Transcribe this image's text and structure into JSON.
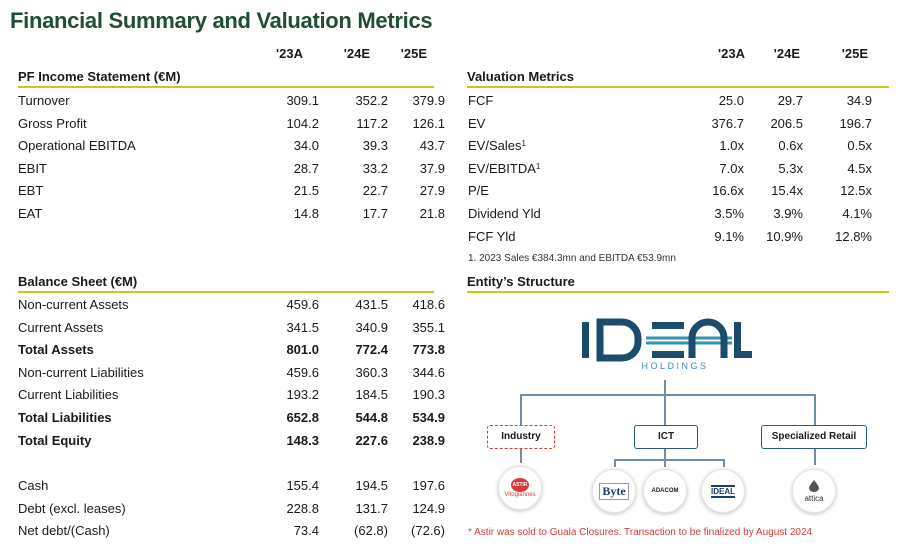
{
  "title": "Financial Summary and Valuation Metrics",
  "years": [
    "'23A",
    "'24E",
    "'25E"
  ],
  "income": {
    "header": "PF Income Statement (€M)",
    "rows": [
      {
        "label": "Turnover",
        "values": [
          "309.1",
          "352.2",
          "379.9"
        ]
      },
      {
        "label": "Gross Profit",
        "values": [
          "104.2",
          "117.2",
          "126.1"
        ]
      },
      {
        "label": "Operational EBITDA",
        "values": [
          "34.0",
          "39.3",
          "43.7"
        ]
      },
      {
        "label": "EBIT",
        "values": [
          "28.7",
          "33.2",
          "37.9"
        ]
      },
      {
        "label": "EBT",
        "values": [
          "21.5",
          "22.7",
          "27.9"
        ]
      },
      {
        "label": "EAT",
        "values": [
          "14.8",
          "17.7",
          "21.8"
        ]
      }
    ]
  },
  "valuation": {
    "header": "Valuation Metrics",
    "rows": [
      {
        "label": "FCF",
        "values": [
          "25.0",
          "29.7",
          "34.9"
        ]
      },
      {
        "label": "EV",
        "values": [
          "376.7",
          "206.5",
          "196.7"
        ]
      },
      {
        "label": "EV/Sales",
        "sup": "1",
        "values": [
          "1.0x",
          "0.6x",
          "0.5x"
        ]
      },
      {
        "label": "EV/EBITDA",
        "sup": "1",
        "values": [
          "7.0x",
          "5.3x",
          "4.5x"
        ]
      },
      {
        "label": "P/E",
        "values": [
          "16.6x",
          "15.4x",
          "12.5x"
        ]
      },
      {
        "label": "Dividend Yld",
        "values": [
          "3.5%",
          "3.9%",
          "4.1%"
        ]
      },
      {
        "label": "FCF Yld",
        "values": [
          "9.1%",
          "10.9%",
          "12.8%"
        ]
      }
    ],
    "footnote": "1. 2023 Sales €384.3mn and EBITDA €53.9mn"
  },
  "balance": {
    "header": "Balance Sheet (€M)",
    "rows": [
      {
        "label": "Non-current Assets",
        "values": [
          "459.6",
          "431.5",
          "418.6"
        ]
      },
      {
        "label": "Current Assets",
        "values": [
          "341.5",
          "340.9",
          "355.1"
        ]
      },
      {
        "label": "Total Assets",
        "values": [
          "801.0",
          "772.4",
          "773.8"
        ],
        "bold": true
      },
      {
        "label": "Non-current Liabilities",
        "values": [
          "459.6",
          "360.3",
          "344.6"
        ]
      },
      {
        "label": "Current Liabilities",
        "values": [
          "193.2",
          "184.5",
          "190.3"
        ]
      },
      {
        "label": "Total Liabilities",
        "values": [
          "652.8",
          "544.8",
          "534.9"
        ],
        "bold": true
      },
      {
        "label": "Total Equity",
        "values": [
          "148.3",
          "227.6",
          "238.9"
        ],
        "bold": true
      }
    ],
    "rows2": [
      {
        "label": "Cash",
        "values": [
          "155.4",
          "194.5",
          "197.6"
        ]
      },
      {
        "label": "Debt (excl. leases)",
        "values": [
          "228.8",
          "131.7",
          "124.9"
        ]
      },
      {
        "label": "Net debt/(Cash)",
        "values": [
          "73.4",
          "(62.8)",
          "(72.6)"
        ]
      }
    ]
  },
  "entity": {
    "header": "Entity’s Structure",
    "logo_text": "IDEAL",
    "logo_sub": "HOLDINGS",
    "segments": [
      {
        "label": "Industry",
        "dashed": true
      },
      {
        "label": "ICT",
        "dashed": false
      },
      {
        "label": "Specialized Retail",
        "dashed": false
      }
    ],
    "companies": {
      "astir": "ASTIR",
      "astir_name": "Vitogiannes",
      "byte": "Byte",
      "adacom": "ADACOM",
      "ideal": "IDEAL",
      "attica": "attica"
    },
    "note": "* Astir was sold to Guala Closures. Transaction to be finalized by August 2024"
  },
  "colors": {
    "title": "#1f4e32",
    "rule": "#c8c81e",
    "accent": "#2a5a80",
    "red": "#d33a3a"
  }
}
